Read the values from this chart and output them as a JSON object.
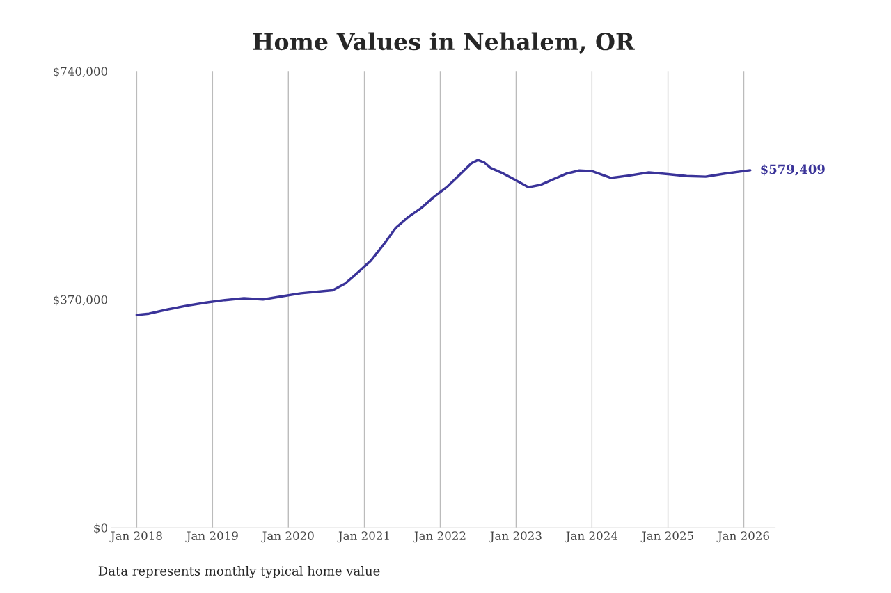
{
  "chart_data": {
    "type": "line",
    "title": "Home Values in Nehalem, OR",
    "x": [
      "2018-01",
      "2018-03",
      "2018-06",
      "2018-09",
      "2018-12",
      "2019-03",
      "2019-06",
      "2019-09",
      "2019-12",
      "2020-03",
      "2020-06",
      "2020-08",
      "2020-10",
      "2020-12",
      "2021-02",
      "2021-04",
      "2021-06",
      "2021-08",
      "2021-10",
      "2021-12",
      "2022-02",
      "2022-04",
      "2022-06",
      "2022-07",
      "2022-08",
      "2022-09",
      "2022-11",
      "2023-01",
      "2023-03",
      "2023-05",
      "2023-07",
      "2023-09",
      "2023-11",
      "2024-01",
      "2024-04",
      "2024-07",
      "2024-10",
      "2025-01",
      "2025-04",
      "2025-07",
      "2025-10",
      "2026-02"
    ],
    "series": [
      {
        "color": "#3a3399",
        "values": [
          345000,
          347000,
          354000,
          360000,
          365000,
          369000,
          372000,
          370000,
          375000,
          380000,
          383000,
          385000,
          396000,
          414000,
          433000,
          458000,
          486000,
          504000,
          518000,
          536000,
          552000,
          571000,
          591000,
          596000,
          592000,
          583000,
          574000,
          563000,
          552000,
          556000,
          565000,
          574000,
          579000,
          578000,
          567000,
          571000,
          576000,
          573000,
          570000,
          569000,
          574000,
          579409
        ]
      }
    ],
    "ylim": [
      0,
      740000
    ],
    "yticks": [
      {
        "value": 0,
        "label": "$0"
      },
      {
        "value": 370000,
        "label": "$370,000"
      },
      {
        "value": 740000,
        "label": "$740,000"
      }
    ],
    "xticks": [
      {
        "value": "2018-01",
        "label": "Jan 2018"
      },
      {
        "value": "2019-01",
        "label": "Jan 2019"
      },
      {
        "value": "2020-01",
        "label": "Jan 2020"
      },
      {
        "value": "2021-01",
        "label": "Jan 2021"
      },
      {
        "value": "2022-01",
        "label": "Jan 2022"
      },
      {
        "value": "2023-01",
        "label": "Jan 2023"
      },
      {
        "value": "2024-01",
        "label": "Jan 2024"
      },
      {
        "value": "2025-01",
        "label": "Jan 2025"
      },
      {
        "value": "2026-01",
        "label": "Jan 2026"
      }
    ],
    "xlim": [
      "2017-09",
      "2026-06"
    ],
    "grid": "x",
    "annotations": [
      {
        "text": "$579,409",
        "x": "2026-02",
        "y": 579409
      },
      "Data represents monthly typical home value"
    ]
  }
}
